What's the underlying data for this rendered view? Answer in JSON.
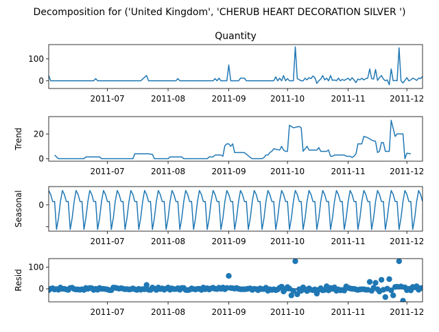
{
  "figure": {
    "suptitle": "Decomposition for ('United Kingdom', 'CHERUB HEART DECORATION SILVER ')",
    "line_color": "#1f77b4",
    "zero_line_color": "#000000"
  },
  "chart_data": [
    {
      "type": "line",
      "title": "Quantity",
      "ylabel": "",
      "x_start": "2011-06-01",
      "x_end": "2011-12-09",
      "ylim": [
        -35,
        165
      ],
      "yticks": [
        0,
        100
      ],
      "xticks": [
        "2011-07",
        "2011-08",
        "2011-09",
        "2011-10",
        "2011-11",
        "2011-12"
      ],
      "points": [
        [
          "2011-06-01",
          24
        ],
        [
          "2011-06-02",
          0
        ],
        [
          "2011-06-24",
          0
        ],
        [
          "2011-06-25",
          10
        ],
        [
          "2011-06-26",
          0
        ],
        [
          "2011-07-18",
          0
        ],
        [
          "2011-07-21",
          24
        ],
        [
          "2011-07-22",
          0
        ],
        [
          "2011-08-05",
          0
        ],
        [
          "2011-08-06",
          10
        ],
        [
          "2011-08-07",
          0
        ],
        [
          "2011-08-24",
          0
        ],
        [
          "2011-08-25",
          10
        ],
        [
          "2011-08-26",
          0
        ],
        [
          "2011-08-27",
          12
        ],
        [
          "2011-08-28",
          0
        ],
        [
          "2011-08-31",
          0
        ],
        [
          "2011-09-01",
          72
        ],
        [
          "2011-09-02",
          0
        ],
        [
          "2011-09-06",
          0
        ],
        [
          "2011-09-07",
          12
        ],
        [
          "2011-09-09",
          12
        ],
        [
          "2011-09-10",
          0
        ],
        [
          "2011-09-24",
          0
        ],
        [
          "2011-09-25",
          18
        ],
        [
          "2011-09-26",
          0
        ],
        [
          "2011-09-27",
          12
        ],
        [
          "2011-09-28",
          0
        ],
        [
          "2011-09-29",
          24
        ],
        [
          "2011-09-30",
          0
        ],
        [
          "2011-10-01",
          10
        ],
        [
          "2011-10-02",
          0
        ],
        [
          "2011-10-04",
          0
        ],
        [
          "2011-10-05",
          155
        ],
        [
          "2011-10-06",
          10
        ],
        [
          "2011-10-08",
          0
        ],
        [
          "2011-10-09",
          0
        ],
        [
          "2011-10-10",
          12
        ],
        [
          "2011-10-11",
          4
        ],
        [
          "2011-10-12",
          14
        ],
        [
          "2011-10-13",
          10
        ],
        [
          "2011-10-14",
          22
        ],
        [
          "2011-10-15",
          14
        ],
        [
          "2011-10-16",
          -12
        ],
        [
          "2011-10-17",
          0
        ],
        [
          "2011-10-18",
          8
        ],
        [
          "2011-10-19",
          24
        ],
        [
          "2011-10-20",
          4
        ],
        [
          "2011-10-21",
          12
        ],
        [
          "2011-10-22",
          0
        ],
        [
          "2011-10-23",
          24
        ],
        [
          "2011-10-24",
          2
        ],
        [
          "2011-10-25",
          4
        ],
        [
          "2011-10-26",
          0
        ],
        [
          "2011-10-27",
          12
        ],
        [
          "2011-10-28",
          0
        ],
        [
          "2011-10-29",
          6
        ],
        [
          "2011-10-30",
          2
        ],
        [
          "2011-11-01",
          12
        ],
        [
          "2011-11-02",
          2
        ],
        [
          "2011-11-03",
          14
        ],
        [
          "2011-11-04",
          4
        ],
        [
          "2011-11-05",
          -8
        ],
        [
          "2011-11-06",
          8
        ],
        [
          "2011-11-07",
          4
        ],
        [
          "2011-11-08",
          12
        ],
        [
          "2011-11-09",
          4
        ],
        [
          "2011-11-10",
          10
        ],
        [
          "2011-11-11",
          12
        ],
        [
          "2011-11-12",
          54
        ],
        [
          "2011-11-13",
          10
        ],
        [
          "2011-11-14",
          8
        ],
        [
          "2011-11-15",
          52
        ],
        [
          "2011-11-16",
          2
        ],
        [
          "2011-11-17",
          14
        ],
        [
          "2011-11-18",
          24
        ],
        [
          "2011-11-19",
          8
        ],
        [
          "2011-11-20",
          0
        ],
        [
          "2011-11-21",
          4
        ],
        [
          "2011-11-22",
          -18
        ],
        [
          "2011-11-23",
          54
        ],
        [
          "2011-11-24",
          0
        ],
        [
          "2011-11-25",
          2
        ],
        [
          "2011-11-26",
          0
        ],
        [
          "2011-11-27",
          150
        ],
        [
          "2011-11-28",
          0
        ],
        [
          "2011-11-29",
          -10
        ],
        [
          "2011-11-30",
          2
        ],
        [
          "2011-12-01",
          14
        ],
        [
          "2011-12-02",
          0
        ],
        [
          "2011-12-03",
          4
        ],
        [
          "2011-12-04",
          12
        ],
        [
          "2011-12-05",
          8
        ],
        [
          "2011-12-06",
          2
        ],
        [
          "2011-12-07",
          12
        ],
        [
          "2011-12-08",
          10
        ],
        [
          "2011-12-09",
          20
        ]
      ]
    },
    {
      "type": "line",
      "title": "",
      "ylabel": "Trend",
      "x_start": "2011-06-01",
      "x_end": "2011-12-09",
      "ylim": [
        -2,
        34
      ],
      "yticks": [
        0,
        20
      ],
      "xticks": [
        "2011-07",
        "2011-08",
        "2011-09",
        "2011-10",
        "2011-11",
        "2011-12"
      ],
      "points": [
        [
          "2011-06-04",
          3
        ],
        [
          "2011-06-06",
          0
        ],
        [
          "2011-06-19",
          0
        ],
        [
          "2011-06-20",
          1.5
        ],
        [
          "2011-06-27",
          1.5
        ],
        [
          "2011-06-28",
          0
        ],
        [
          "2011-07-14",
          0
        ],
        [
          "2011-07-15",
          4
        ],
        [
          "2011-07-22",
          4
        ],
        [
          "2011-07-24",
          3.5
        ],
        [
          "2011-07-25",
          0
        ],
        [
          "2011-08-01",
          0
        ],
        [
          "2011-08-02",
          1.5
        ],
        [
          "2011-08-08",
          1.5
        ],
        [
          "2011-08-09",
          0
        ],
        [
          "2011-08-21",
          0
        ],
        [
          "2011-08-22",
          1.5
        ],
        [
          "2011-08-24",
          1.5
        ],
        [
          "2011-08-25",
          3
        ],
        [
          "2011-08-28",
          3
        ],
        [
          "2011-08-29",
          2
        ],
        [
          "2011-08-30",
          10.5
        ],
        [
          "2011-08-31",
          12
        ],
        [
          "2011-09-01",
          12
        ],
        [
          "2011-09-02",
          10
        ],
        [
          "2011-09-03",
          12
        ],
        [
          "2011-09-04",
          5
        ],
        [
          "2011-09-09",
          5
        ],
        [
          "2011-09-12",
          1
        ],
        [
          "2011-09-13",
          0
        ],
        [
          "2011-09-18",
          0
        ],
        [
          "2011-09-19",
          1
        ],
        [
          "2011-09-20",
          3
        ],
        [
          "2011-09-21",
          3
        ],
        [
          "2011-09-22",
          5
        ],
        [
          "2011-09-23",
          6
        ],
        [
          "2011-09-24",
          8
        ],
        [
          "2011-09-27",
          7
        ],
        [
          "2011-09-28",
          10
        ],
        [
          "2011-09-29",
          7
        ],
        [
          "2011-09-30",
          6
        ],
        [
          "2011-10-01",
          6
        ],
        [
          "2011-10-02",
          27
        ],
        [
          "2011-10-04",
          25
        ],
        [
          "2011-10-07",
          26
        ],
        [
          "2011-10-08",
          25
        ],
        [
          "2011-10-09",
          6
        ],
        [
          "2011-10-11",
          10
        ],
        [
          "2011-10-12",
          7
        ],
        [
          "2011-10-16",
          7
        ],
        [
          "2011-10-17",
          9
        ],
        [
          "2011-10-18",
          6
        ],
        [
          "2011-10-21",
          6
        ],
        [
          "2011-10-22",
          7
        ],
        [
          "2011-10-23",
          2
        ],
        [
          "2011-10-24",
          2
        ],
        [
          "2011-10-25",
          3
        ],
        [
          "2011-10-30",
          3
        ],
        [
          "2011-10-31",
          2
        ],
        [
          "2011-11-02",
          2
        ],
        [
          "2011-11-03",
          1
        ],
        [
          "2011-11-04",
          2
        ],
        [
          "2011-11-05",
          4
        ],
        [
          "2011-11-06",
          12
        ],
        [
          "2011-11-08",
          12
        ],
        [
          "2011-11-09",
          18
        ],
        [
          "2011-11-11",
          17
        ],
        [
          "2011-11-13",
          15
        ],
        [
          "2011-11-15",
          14
        ],
        [
          "2011-11-16",
          5
        ],
        [
          "2011-11-17",
          6
        ],
        [
          "2011-11-18",
          13
        ],
        [
          "2011-11-19",
          13
        ],
        [
          "2011-11-20",
          6
        ],
        [
          "2011-11-22",
          6
        ],
        [
          "2011-11-23",
          31
        ],
        [
          "2011-11-25",
          18
        ],
        [
          "2011-11-26",
          20
        ],
        [
          "2011-11-29",
          20
        ],
        [
          "2011-11-30",
          0
        ],
        [
          "2011-12-01",
          4.5
        ],
        [
          "2011-12-03",
          4
        ]
      ]
    },
    {
      "type": "line",
      "title": "",
      "ylabel": "Seasonal",
      "x_start": "2011-06-01",
      "x_end": "2011-12-09",
      "ylim": [
        -6,
        4.2
      ],
      "yticks": [
        -5,
        0
      ],
      "yticklabels": [
        "",
        "0"
      ],
      "xticks": [
        "2011-07",
        "2011-08",
        "2011-09",
        "2011-10",
        "2011-11",
        "2011-12"
      ],
      "period": 7,
      "weekly_pattern": [
        3.3,
        2.4,
        0.8,
        0.8,
        -5.6,
        -3.0,
        0.8
      ],
      "points": []
    },
    {
      "type": "scatter",
      "title": "",
      "ylabel": "Resid",
      "x_start": "2011-06-01",
      "x_end": "2011-12-09",
      "ylim": [
        -60,
        140
      ],
      "yticks": [
        0,
        100
      ],
      "xticks": [
        "2011-07",
        "2011-08",
        "2011-09",
        "2011-10",
        "2011-11",
        "2011-12"
      ],
      "zero_line": true,
      "points": []
    }
  ]
}
